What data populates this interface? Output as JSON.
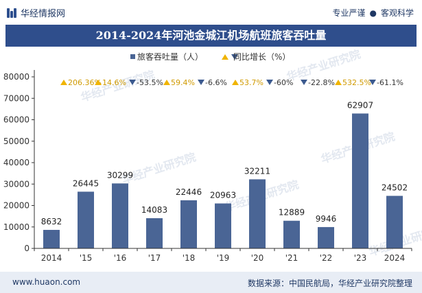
{
  "header": {
    "brand": "华经情报网",
    "tag1": "专业严谨",
    "tag_sep": "●",
    "tag2": "客观科学"
  },
  "chart_data": {
    "type": "bar",
    "title": "2014-2024年河池金城江机场航班旅客吞吐量",
    "categories": [
      "2014",
      "'15",
      "'16",
      "'17",
      "'18",
      "'19",
      "'20",
      "'21",
      "'22",
      "'23",
      "2024"
    ],
    "series": [
      {
        "name": "旅客吞吐量（人）",
        "values": [
          8632,
          26445,
          30299,
          14083,
          22446,
          20963,
          32211,
          12889,
          9946,
          62907,
          24502
        ]
      }
    ],
    "growth": {
      "name": "同比增长（%）",
      "labels": [
        "206.36%",
        "14.6%",
        "-53.5%",
        "59.4%",
        "-6.6%",
        "53.7%",
        "-60%",
        "-22.8%",
        "532.5%",
        "-61.1%"
      ],
      "directions": [
        "up",
        "up",
        "down",
        "up",
        "down",
        "up",
        "down",
        "down",
        "up",
        "down"
      ]
    },
    "yticks": [
      0,
      10000,
      20000,
      30000,
      40000,
      50000,
      60000,
      70000,
      80000
    ],
    "ylim": [
      0,
      80000
    ],
    "colors": {
      "bar": "#4a6595",
      "up": "#f0b400",
      "down": "#3c5a8f",
      "axis": "#333333",
      "grid": "#ffffff"
    },
    "legend_position": "top-center"
  },
  "watermark": "华经产业研究院",
  "footer": {
    "website": "www.huaon.com",
    "source": "数据来源：中国民航局，华经产业研究院整理"
  }
}
